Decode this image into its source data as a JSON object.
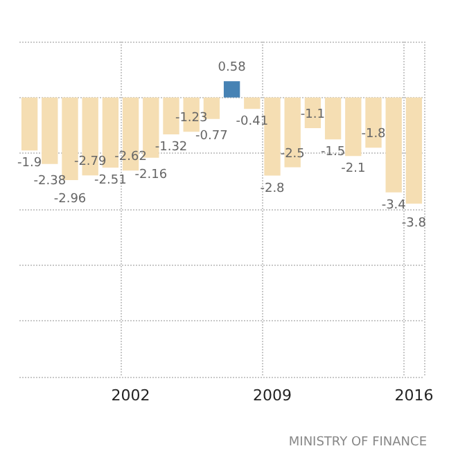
{
  "chart_data": {
    "type": "bar",
    "categories": [
      null,
      null,
      null,
      null,
      null,
      "2002",
      null,
      null,
      null,
      null,
      null,
      null,
      "2009",
      null,
      null,
      null,
      null,
      null,
      null,
      "2016"
    ],
    "values": [
      -1.9,
      -2.38,
      -2.96,
      -2.79,
      -2.51,
      -2.62,
      -2.16,
      -1.32,
      -1.23,
      -0.77,
      0.58,
      -0.41,
      -2.8,
      -2.5,
      -1.1,
      -1.5,
      -2.1,
      -1.8,
      -3.4,
      -3.8
    ],
    "colors": [
      "#f5deb3",
      "#f5deb3",
      "#f5deb3",
      "#f5deb3",
      "#f5deb3",
      "#f5deb3",
      "#f5deb3",
      "#f5deb3",
      "#f5deb3",
      "#f5deb3",
      "#4682b4",
      "#f5deb3",
      "#f5deb3",
      "#f5deb3",
      "#f5deb3",
      "#f5deb3",
      "#f5deb3",
      "#f5deb3",
      "#f5deb3",
      "#f5deb3"
    ],
    "data_labels": true,
    "ylim": [
      -10,
      2
    ],
    "yticks": [
      {
        "value": -10,
        "label": null
      },
      {
        "value": -8,
        "label": null
      },
      {
        "value": -6,
        "label": null
      },
      {
        "value": -4,
        "label": null
      },
      {
        "value": -2,
        "label": null
      },
      {
        "value": 0,
        "label": null
      },
      {
        "value": 2,
        "label": null
      }
    ],
    "tick_labels": "x",
    "grid": true,
    "annotations": [
      "MINISTRY OF FINANCE"
    ]
  }
}
